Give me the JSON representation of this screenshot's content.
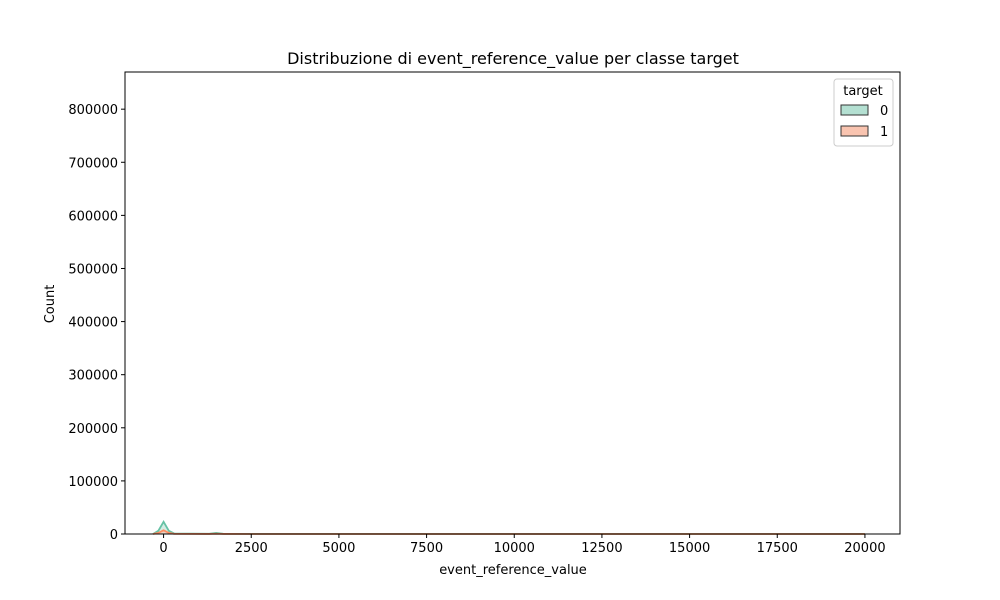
{
  "chart_data": {
    "type": "area",
    "title": "Distribuzione di event_reference_value per classe target",
    "xlabel": "event_reference_value",
    "ylabel": "Count",
    "xlim": [
      -1100,
      21000
    ],
    "ylim": [
      0,
      870000
    ],
    "xticks": [
      0,
      2500,
      5000,
      7500,
      10000,
      12500,
      15000,
      17500,
      20000
    ],
    "yticks": [
      0,
      100000,
      200000,
      300000,
      400000,
      500000,
      600000,
      700000,
      800000
    ],
    "xtick_labels": [
      "0",
      "2500",
      "5000",
      "7500",
      "10000",
      "12500",
      "15000",
      "17500",
      "20000"
    ],
    "ytick_labels": [
      "0",
      "100000",
      "200000",
      "300000",
      "400000",
      "500000",
      "600000",
      "700000",
      "800000"
    ],
    "grid": false,
    "legend": {
      "title": "target",
      "placement": "top-right"
    },
    "series": [
      {
        "name": "0",
        "fill": "#b4e0d2",
        "line": "#66c2a5",
        "x": [
          -300,
          -150,
          0,
          150,
          300,
          1300,
          1500,
          1700,
          2500,
          5000,
          7500,
          10000,
          12500,
          15000,
          17500,
          20000
        ],
        "values": [
          0,
          6000,
          23000,
          6000,
          1000,
          500,
          2000,
          500,
          300,
          200,
          150,
          100,
          100,
          100,
          100,
          100
        ]
      },
      {
        "name": "1",
        "fill": "#f9c4b0",
        "line": "#fc8d62",
        "x": [
          -300,
          -150,
          0,
          150,
          300,
          1300,
          1500,
          1700,
          2500,
          5000,
          7500,
          10000,
          12500,
          15000,
          17500,
          20000
        ],
        "values": [
          0,
          2000,
          7000,
          2000,
          300,
          100,
          400,
          100,
          50,
          30,
          20,
          10,
          10,
          10,
          10,
          10
        ]
      }
    ]
  }
}
